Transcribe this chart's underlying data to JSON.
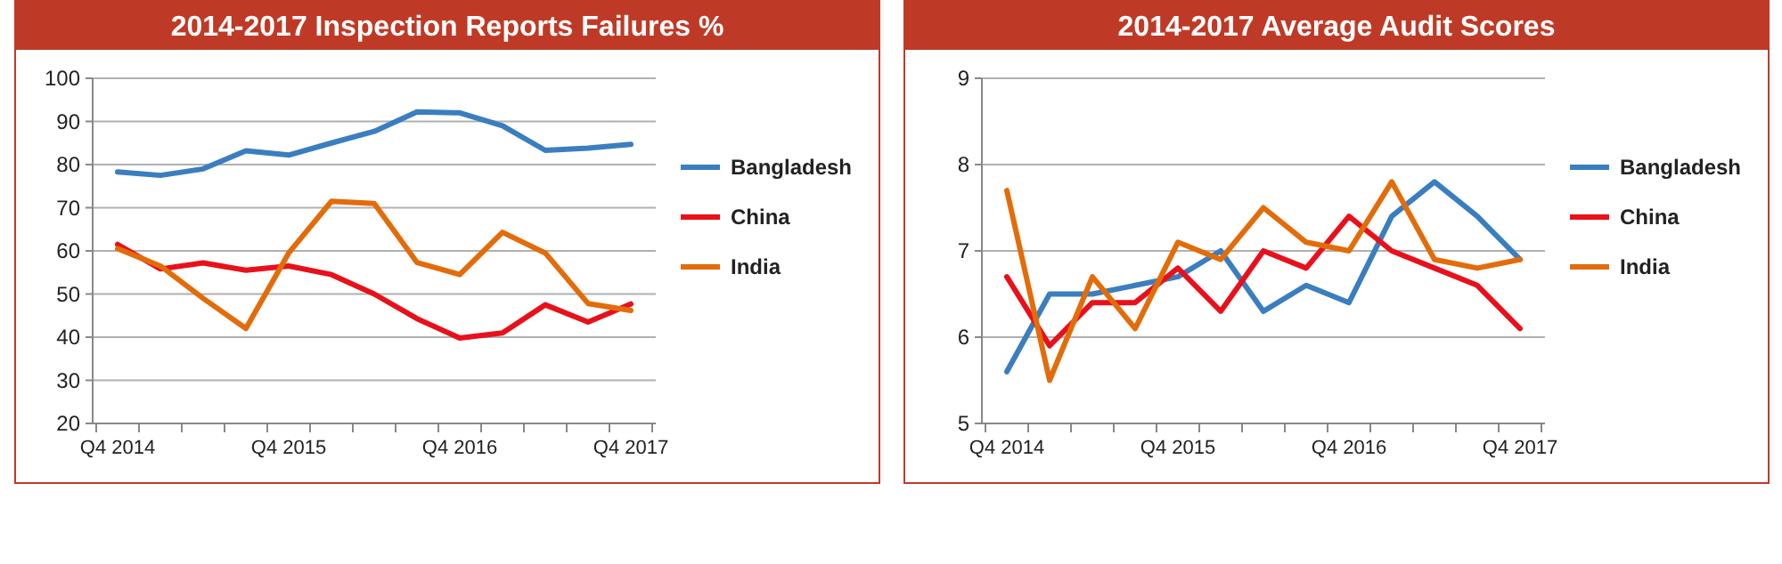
{
  "chart_data": [
    {
      "type": "line",
      "title": "2014-2017 Inspection Reports Failures %",
      "categories": [
        "Q4 2014",
        null,
        null,
        null,
        "Q4 2015",
        null,
        null,
        null,
        "Q4 2016",
        null,
        null,
        null,
        "Q4 2017"
      ],
      "ylim": [
        20,
        100
      ],
      "yticks": [
        20,
        30,
        40,
        50,
        60,
        70,
        80,
        90,
        100
      ],
      "grid": "y",
      "legend": "right",
      "marker": "none",
      "series": [
        {
          "name": "Bangladesh",
          "color": "#3a7ebf",
          "values": [
            78.3,
            77.5,
            79,
            83.2,
            82.2,
            85,
            87.7,
            92.2,
            92,
            89,
            83.3,
            83.8,
            84.7
          ]
        },
        {
          "name": "China",
          "color": "#e8111b",
          "values": [
            61.5,
            55.8,
            57.2,
            55.5,
            56.5,
            54.5,
            50,
            44.3,
            39.8,
            41,
            47.5,
            43.5,
            47.7
          ]
        },
        {
          "name": "India",
          "color": "#e36c0a",
          "values": [
            60.5,
            56.5,
            49,
            42,
            59.5,
            71.5,
            71,
            57.3,
            54.5,
            64.3,
            59.5,
            47.8,
            46.2
          ]
        }
      ]
    },
    {
      "type": "line",
      "title": "2014-2017 Average Audit Scores",
      "categories": [
        "Q4 2014",
        null,
        null,
        null,
        "Q4 2015",
        null,
        null,
        null,
        "Q4 2016",
        null,
        null,
        null,
        "Q4 2017"
      ],
      "ylim": [
        5,
        9
      ],
      "yticks": [
        5,
        6,
        7,
        8,
        9
      ],
      "grid": "y",
      "legend": "right",
      "marker": "none",
      "series": [
        {
          "name": "Bangladesh",
          "color": "#3a7ebf",
          "values": [
            5.6,
            6.5,
            6.5,
            6.6,
            6.7,
            7.0,
            6.3,
            6.6,
            6.4,
            7.4,
            7.8,
            7.4,
            6.9
          ]
        },
        {
          "name": "China",
          "color": "#e8111b",
          "values": [
            6.7,
            5.9,
            6.4,
            6.4,
            6.8,
            6.3,
            7.0,
            6.8,
            7.4,
            7.0,
            6.8,
            6.6,
            6.1
          ]
        },
        {
          "name": "India",
          "color": "#e36c0a",
          "values": [
            7.7,
            5.5,
            6.7,
            6.1,
            7.1,
            6.9,
            7.5,
            7.1,
            7.0,
            7.8,
            6.9,
            6.8,
            6.9
          ]
        }
      ]
    }
  ]
}
